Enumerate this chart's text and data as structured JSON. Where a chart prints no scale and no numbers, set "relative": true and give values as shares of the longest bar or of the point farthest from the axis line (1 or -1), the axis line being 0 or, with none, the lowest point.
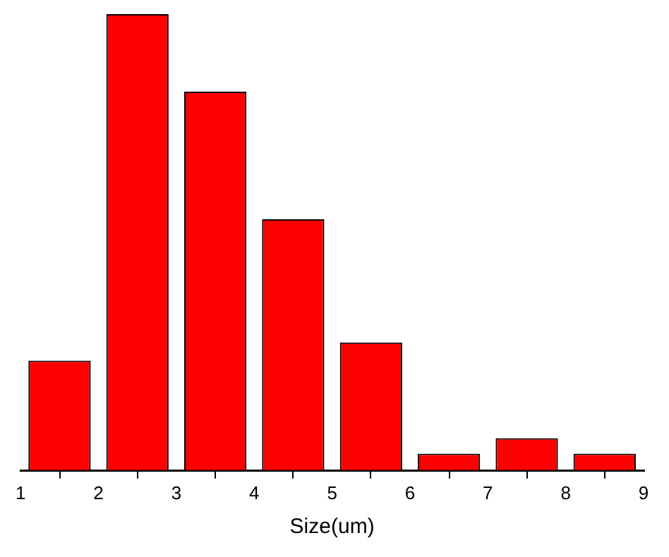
{
  "chart_data": {
    "type": "bar",
    "xlabel": "Size(um)",
    "x": [
      1.5,
      2.5,
      3.5,
      4.5,
      5.5,
      6.5,
      7.5,
      8.5
    ],
    "values": [
      0.24,
      1,
      0.83,
      0.55,
      0.28,
      0.036,
      0.07,
      0.036
    ],
    "color": "#ff0000",
    "relative": true,
    "xlim": [
      1,
      9
    ],
    "xticks": [
      1,
      2,
      3,
      4,
      5,
      6,
      7,
      8,
      9
    ]
  }
}
